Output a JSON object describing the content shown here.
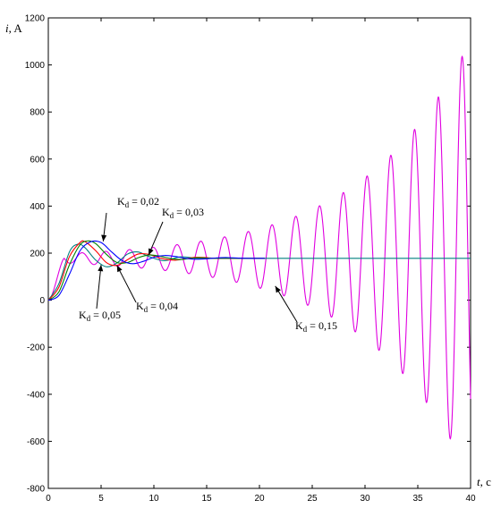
{
  "chart_data": {
    "type": "line",
    "title": "",
    "xlabel": "t",
    "xlabel_unit": ", c",
    "ylabel": "i",
    "ylabel_unit": ", A",
    "xlim": [
      0,
      40
    ],
    "ylim": [
      -800,
      1200
    ],
    "xticks": [
      0,
      5,
      10,
      15,
      20,
      25,
      30,
      35,
      40
    ],
    "yticks": [
      -800,
      -600,
      -400,
      -200,
      0,
      200,
      400,
      600,
      800,
      1000,
      1200
    ],
    "grid": false,
    "legend": "none",
    "series": [
      {
        "name": "Kd = 0,02",
        "color": "#0000ff",
        "x": [
          0,
          1,
          2,
          3,
          4,
          5,
          6,
          7,
          8,
          9,
          10,
          11,
          12,
          13,
          14,
          15,
          16,
          17,
          18,
          19,
          20.5
        ],
        "y": [
          0,
          20,
          110,
          210,
          248,
          245,
          205,
          168,
          155,
          165,
          182,
          190,
          186,
          178,
          174,
          176,
          180,
          181,
          179,
          178,
          178
        ]
      },
      {
        "name": "Kd = 0,03",
        "color": "#008000",
        "x": [
          0,
          1,
          2,
          3,
          3.8,
          4.5,
          5.5,
          6.5,
          7.5,
          8.5,
          9.5,
          10.5,
          11.5,
          12.5,
          14,
          16,
          18,
          20.5
        ],
        "y": [
          0,
          35,
          150,
          235,
          252,
          240,
          195,
          160,
          160,
          180,
          192,
          188,
          178,
          173,
          180,
          178,
          178,
          178
        ]
      },
      {
        "name": "Kd = 0,04",
        "color": "#ff0000",
        "x": [
          0,
          1,
          2,
          3,
          3.5,
          4.5,
          5.5,
          6.5,
          7.5,
          8.5,
          9.5,
          10.5,
          12,
          14,
          16,
          18,
          20.5
        ],
        "y": [
          0,
          55,
          185,
          245,
          248,
          210,
          160,
          148,
          172,
          196,
          195,
          180,
          170,
          182,
          178,
          178,
          178
        ]
      },
      {
        "name": "Kd = 0,05",
        "color": "#008080",
        "x": [
          0,
          1,
          2,
          2.8,
          3.5,
          4.5,
          5.5,
          6.5,
          7.5,
          8.5,
          9.5,
          11,
          12.5,
          14,
          16,
          18,
          20.5,
          30,
          40
        ],
        "y": [
          0,
          70,
          205,
          238,
          222,
          170,
          142,
          158,
          196,
          205,
          186,
          168,
          184,
          179,
          178,
          178,
          178,
          178,
          178
        ]
      },
      {
        "name": "Kd = 0,15",
        "color": "#e000e0",
        "function": "growing-oscillation",
        "x_range": [
          0,
          40
        ],
        "steady_value": 178,
        "oscillation_period": 2.25,
        "initial_amplitude": 20,
        "amplitude_at_end": 930
      }
    ],
    "annotations": [
      {
        "label": "Kd = 0,02",
        "base": "K",
        "sub": "d",
        "rest": " = 0,02",
        "points_to": [
          5.2,
          250
        ]
      },
      {
        "label": "Kd = 0,03",
        "base": "K",
        "sub": "d",
        "rest": " = 0,03",
        "points_to": [
          9.5,
          192
        ]
      },
      {
        "label": "Kd = 0,04",
        "base": "K",
        "sub": "d",
        "rest": " = 0,04",
        "points_to": [
          6.5,
          148
        ]
      },
      {
        "label": "Kd = 0,05",
        "base": "K",
        "sub": "d",
        "rest": " = 0,05",
        "points_to": [
          5.0,
          150
        ]
      },
      {
        "label": "Kd = 0,15",
        "base": "K",
        "sub": "d",
        "rest": " = 0,15",
        "points_to": [
          21.5,
          60
        ]
      }
    ]
  }
}
